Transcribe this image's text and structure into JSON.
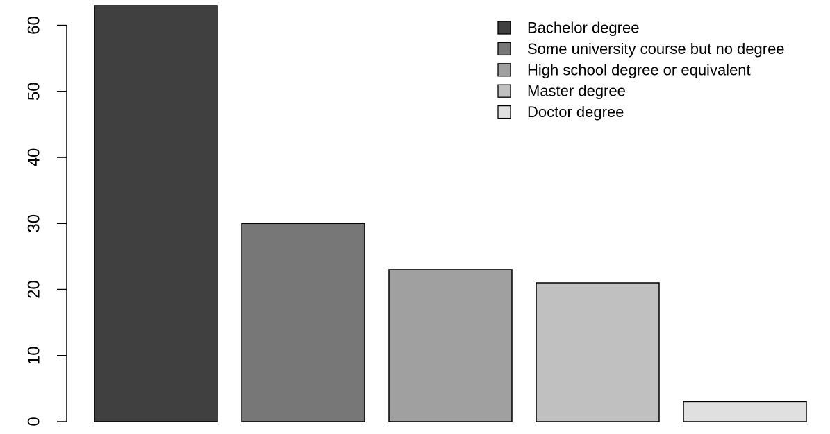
{
  "chart_data": {
    "type": "bar",
    "categories": [
      "Bachelor degree",
      "Some university course but no degree",
      "High school degree or equivalent",
      "Master degree",
      "Doctor degree"
    ],
    "values": [
      63,
      30,
      23,
      21,
      3
    ],
    "colors": [
      "#404040",
      "#777777",
      "#a0a0a0",
      "#c0c0c0",
      "#e0e0e0"
    ],
    "title": "",
    "xlabel": "",
    "ylabel": "",
    "ylim": [
      0,
      63
    ],
    "yticks": [
      0,
      10,
      20,
      30,
      40,
      50,
      60
    ],
    "grid": false,
    "legend": {
      "position": "top-right",
      "entries": [
        "Bachelor degree",
        "Some university course but no degree",
        "High school degree or equivalent",
        "Master degree",
        "Doctor degree"
      ]
    }
  }
}
